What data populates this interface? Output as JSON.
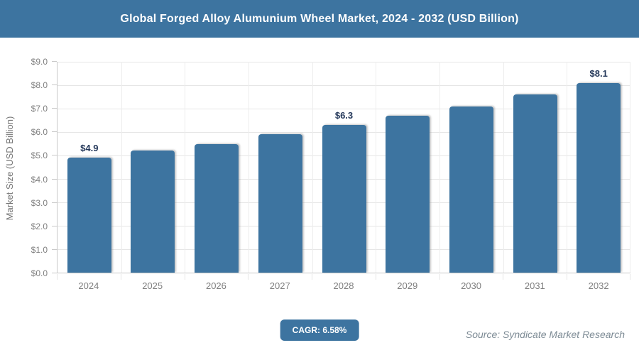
{
  "header": {
    "title": "Global Forged Alloy Alumunium Wheel Market, 2024 - 2032 (USD Billion)"
  },
  "chart_data": {
    "type": "bar",
    "title": "Global Forged Alloy Alumunium Wheel Market, 2024 - 2032 (USD Billion)",
    "categories": [
      "2024",
      "2025",
      "2026",
      "2027",
      "2028",
      "2029",
      "2030",
      "2031",
      "2032"
    ],
    "values": [
      4.9,
      5.2,
      5.5,
      5.9,
      6.3,
      6.7,
      7.1,
      7.6,
      8.1
    ],
    "data_labels": [
      "$4.9",
      "",
      "",
      "",
      "$6.3",
      "",
      "",
      "",
      "$8.1"
    ],
    "xlabel": "",
    "ylabel": "Market Size (USD Billion)",
    "ylim": [
      0,
      9
    ],
    "ytick_labels": [
      "$0.0",
      "$1.0",
      "$2.0",
      "$3.0",
      "$4.0",
      "$5.0",
      "$6.0",
      "$7.0",
      "$8.0",
      "$9.0"
    ],
    "grid": "on",
    "legend": "none"
  },
  "footer": {
    "cagr_label": "CAGR: 6.58%",
    "source": "Source: Syndicate Market Research"
  },
  "colors": {
    "accent": "#3d74a0",
    "bar": "#3d74a0",
    "label_navy": "#24385a",
    "axis_text": "#7f7f7f",
    "grid_h": "#e6e6e6",
    "grid_v": "#ededed",
    "axis_line": "#c9c9c9",
    "source_color": "#7d8b95",
    "title_text": "#ffffff",
    "badge_text": "#ffffff"
  }
}
